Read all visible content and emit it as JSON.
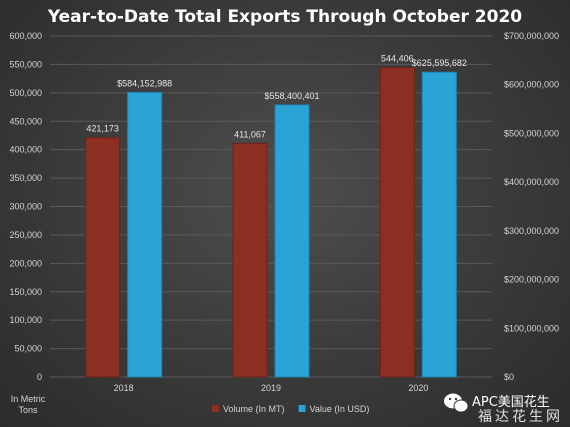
{
  "chart_data": {
    "type": "bar",
    "title": "Year-to-Date Total Exports Through October 2020",
    "categories": [
      "2018",
      "2019",
      "2020"
    ],
    "series": [
      {
        "name": "Volume (In MT)",
        "axis": "left",
        "color": "#8b2f22",
        "values": [
          421173,
          411067,
          544406
        ],
        "labels": [
          "421,173",
          "411,067",
          "544,406"
        ]
      },
      {
        "name": "Value (In USD)",
        "axis": "right",
        "color": "#2aa3d6",
        "values": [
          584152988,
          558400401,
          625595682
        ],
        "labels": [
          "$584,152,988",
          "$558,400,401",
          "$625,595,682"
        ]
      }
    ],
    "y_left": {
      "label": "In Metric Tons",
      "ylim": [
        0,
        600000
      ],
      "ticks": [
        "600,000",
        "550,000",
        "500,000",
        "450,000",
        "400,000",
        "350,000",
        "300,000",
        "250,000",
        "200,000",
        "150,000",
        "100,000",
        "50,000",
        "0"
      ]
    },
    "y_right": {
      "ylim": [
        0,
        700000000
      ],
      "ticks": [
        "$700,000,000",
        "$600,000,000",
        "$500,000,000",
        "$400,000,000",
        "$300,000,000",
        "$200,000,000",
        "$100,000,000",
        "$0"
      ]
    },
    "grid": true,
    "legend_position": "bottom"
  },
  "watermark": {
    "line1": "APC美国花生",
    "line2": "福达花生网"
  }
}
